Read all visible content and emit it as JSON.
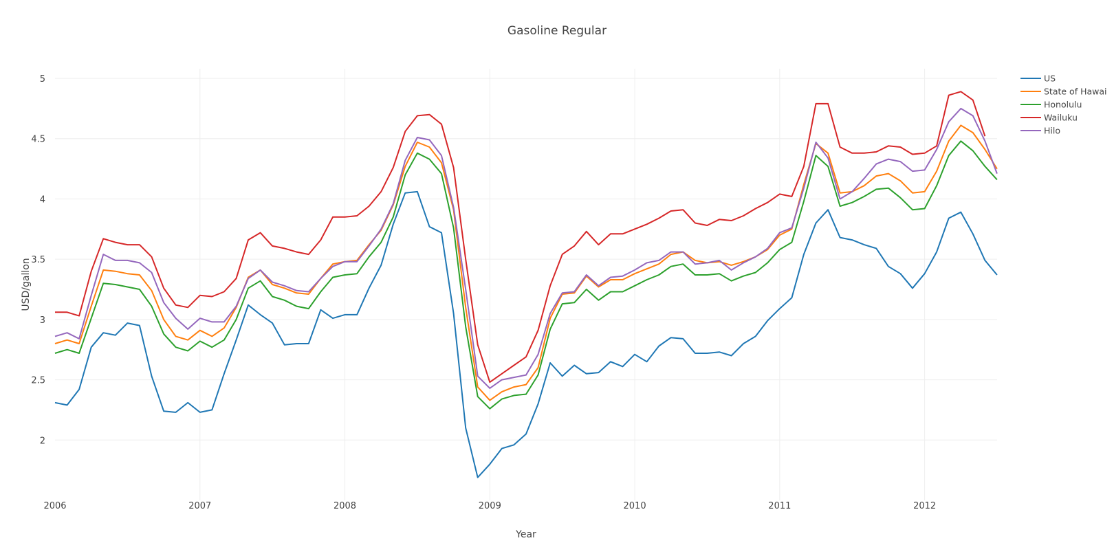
{
  "chart_data": {
    "type": "line",
    "title": "Gasoline Regular",
    "xlabel": "Year",
    "ylabel": "USD/gallon",
    "x_start": 2006.0,
    "x_step": 0.08333,
    "xlim": [
      2006.0,
      2012.5
    ],
    "ylim": [
      1.5,
      5.08
    ],
    "grid": true,
    "legend_position": "top-right",
    "x_ticks": [
      {
        "value": 2006,
        "label": "2006"
      },
      {
        "value": 2007,
        "label": "2007"
      },
      {
        "value": 2008,
        "label": "2008"
      },
      {
        "value": 2009,
        "label": "2009"
      },
      {
        "value": 2010,
        "label": "2010"
      },
      {
        "value": 2011,
        "label": "2011"
      },
      {
        "value": 2012,
        "label": "2012"
      }
    ],
    "y_ticks": [
      {
        "value": 2,
        "label": "2"
      },
      {
        "value": 2.5,
        "label": "2.5"
      },
      {
        "value": 3,
        "label": "3"
      },
      {
        "value": 3.5,
        "label": "3.5"
      },
      {
        "value": 4,
        "label": "4"
      },
      {
        "value": 4.5,
        "label": "4.5"
      },
      {
        "value": 5,
        "label": "5"
      }
    ],
    "series": [
      {
        "name": "US",
        "color": "#1f77b4",
        "values": [
          2.31,
          2.29,
          2.42,
          2.77,
          2.89,
          2.87,
          2.97,
          2.95,
          2.53,
          2.24,
          2.23,
          2.31,
          2.23,
          2.25,
          2.55,
          2.83,
          3.12,
          3.04,
          2.97,
          2.79,
          2.8,
          2.8,
          3.08,
          3.01,
          3.04,
          3.04,
          3.26,
          3.45,
          3.79,
          4.05,
          4.06,
          3.77,
          3.72,
          3.05,
          2.1,
          1.69,
          1.8,
          1.93,
          1.96,
          2.05,
          2.3,
          2.64,
          2.53,
          2.62,
          2.55,
          2.56,
          2.65,
          2.61,
          2.71,
          2.65,
          2.78,
          2.85,
          2.84,
          2.72,
          2.72,
          2.73,
          2.7,
          2.8,
          2.86,
          2.99,
          3.09,
          3.18,
          3.54,
          3.8,
          3.91,
          3.68,
          3.66,
          3.62,
          3.59,
          3.44,
          3.38,
          3.26,
          3.38,
          3.56,
          3.84,
          3.89,
          3.71,
          3.49,
          3.37
        ]
      },
      {
        "name": "State of Hawai",
        "color": "#ff7f0e",
        "values": [
          2.8,
          2.83,
          2.8,
          3.11,
          3.41,
          3.4,
          3.38,
          3.37,
          3.24,
          3.0,
          2.86,
          2.83,
          2.91,
          2.86,
          2.93,
          3.1,
          3.35,
          3.41,
          3.29,
          3.26,
          3.22,
          3.21,
          3.34,
          3.46,
          3.48,
          3.49,
          3.62,
          3.74,
          3.95,
          4.27,
          4.47,
          4.43,
          4.3,
          3.91,
          3.1,
          2.44,
          2.33,
          2.4,
          2.44,
          2.46,
          2.6,
          3.01,
          3.21,
          3.22,
          3.36,
          3.27,
          3.33,
          3.33,
          3.38,
          3.42,
          3.46,
          3.54,
          3.56,
          3.49,
          3.47,
          3.48,
          3.45,
          3.48,
          3.52,
          3.58,
          3.7,
          3.75,
          4.12,
          4.46,
          4.38,
          4.05,
          4.06,
          4.11,
          4.19,
          4.21,
          4.15,
          4.05,
          4.06,
          4.23,
          4.48,
          4.61,
          4.55,
          4.41,
          4.25
        ]
      },
      {
        "name": "Honolulu",
        "color": "#2ca02c",
        "values": [
          2.72,
          2.75,
          2.72,
          3.01,
          3.3,
          3.29,
          3.27,
          3.25,
          3.11,
          2.88,
          2.77,
          2.74,
          2.82,
          2.77,
          2.83,
          3.0,
          3.26,
          3.32,
          3.19,
          3.16,
          3.11,
          3.09,
          3.23,
          3.35,
          3.37,
          3.38,
          3.52,
          3.64,
          3.85,
          4.2,
          4.38,
          4.33,
          4.21,
          3.76,
          2.94,
          2.36,
          2.26,
          2.34,
          2.37,
          2.38,
          2.54,
          2.92,
          3.13,
          3.14,
          3.25,
          3.16,
          3.23,
          3.23,
          3.28,
          3.33,
          3.37,
          3.44,
          3.46,
          3.37,
          3.37,
          3.38,
          3.32,
          3.36,
          3.39,
          3.47,
          3.58,
          3.64,
          3.98,
          4.36,
          4.27,
          3.94,
          3.97,
          4.02,
          4.08,
          4.09,
          4.01,
          3.91,
          3.92,
          4.11,
          4.36,
          4.48,
          4.4,
          4.27,
          4.16
        ]
      },
      {
        "name": "Wailuku",
        "color": "#d62728",
        "values": [
          3.06,
          3.06,
          3.03,
          3.4,
          3.67,
          3.64,
          3.62,
          3.62,
          3.52,
          3.26,
          3.12,
          3.1,
          3.2,
          3.19,
          3.23,
          3.34,
          3.66,
          3.72,
          3.61,
          3.59,
          3.56,
          3.54,
          3.66,
          3.85,
          3.85,
          3.86,
          3.94,
          4.06,
          4.26,
          4.56,
          4.69,
          4.7,
          4.62,
          4.26,
          3.5,
          2.79,
          2.48,
          2.55,
          2.62,
          2.69,
          2.91,
          3.28,
          3.54,
          3.61,
          3.73,
          3.62,
          3.71,
          3.71,
          3.75,
          3.79,
          3.84,
          3.9,
          3.91,
          3.8,
          3.78,
          3.83,
          3.82,
          3.86,
          3.92,
          3.97,
          4.04,
          4.02,
          4.27,
          4.79,
          4.79,
          4.43,
          4.38,
          4.38,
          4.39,
          4.44,
          4.43,
          4.37,
          4.38,
          4.44,
          4.86,
          4.89,
          4.82,
          4.52
        ]
      },
      {
        "name": "Hilo",
        "color": "#9467bd",
        "values": [
          2.86,
          2.89,
          2.84,
          3.2,
          3.54,
          3.49,
          3.49,
          3.47,
          3.39,
          3.14,
          3.01,
          2.92,
          3.01,
          2.98,
          2.98,
          3.11,
          3.34,
          3.41,
          3.31,
          3.28,
          3.24,
          3.23,
          3.34,
          3.44,
          3.48,
          3.48,
          3.61,
          3.75,
          3.96,
          4.32,
          4.51,
          4.49,
          4.36,
          3.93,
          3.25,
          2.53,
          2.43,
          2.5,
          2.52,
          2.54,
          2.71,
          3.05,
          3.22,
          3.23,
          3.37,
          3.28,
          3.35,
          3.36,
          3.41,
          3.47,
          3.49,
          3.56,
          3.56,
          3.46,
          3.47,
          3.49,
          3.41,
          3.47,
          3.52,
          3.59,
          3.72,
          3.76,
          4.09,
          4.47,
          4.34,
          4.0,
          4.06,
          4.17,
          4.29,
          4.33,
          4.31,
          4.23,
          4.24,
          4.41,
          4.64,
          4.75,
          4.69,
          4.48,
          4.21
        ]
      }
    ]
  }
}
